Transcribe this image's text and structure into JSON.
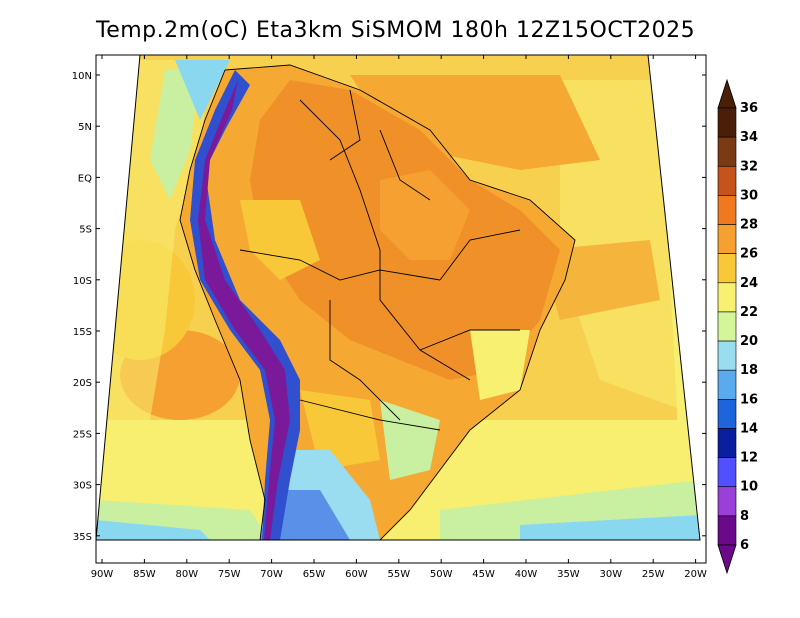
{
  "title": "Temp.2m(oC) Eta3km SiSMOM 180h 12Z15OCT2025",
  "map": {
    "lat_labels": [
      "10N",
      "5N",
      "EQ",
      "5S",
      "10S",
      "15S",
      "20S",
      "25S",
      "30S",
      "35S"
    ],
    "lon_labels": [
      "90W",
      "85W",
      "80W",
      "75W",
      "70W",
      "65W",
      "60W",
      "55W",
      "50W",
      "45W",
      "40W",
      "35W",
      "30W",
      "25W",
      "20W"
    ]
  },
  "colorbar": {
    "labels": [
      "36",
      "34",
      "32",
      "30",
      "28",
      "26",
      "24",
      "22",
      "20",
      "18",
      "16",
      "14",
      "12",
      "10",
      "8",
      "6"
    ],
    "colors": [
      "#4a1e08",
      "#7a3a14",
      "#c4541c",
      "#f0781e",
      "#f5a030",
      "#f8c838",
      "#f8f070",
      "#d4f59a",
      "#9adcf0",
      "#5aaaf0",
      "#1e64dc",
      "#0a1ea0",
      "#5050ff",
      "#9a40d8",
      "#6a0a8a"
    ],
    "top_color": "#4a1e08",
    "bottom_color": "#6a0a8a"
  },
  "colors": {
    "ocean_warm": "#f5b43c",
    "ocean_mid": "#f8d050",
    "ocean_cool": "#f8ee70",
    "coast_green": "#c8f0a0",
    "coast_blue": "#8ad8f0",
    "land_hot": "#f09028",
    "land_warm": "#f5a832",
    "andes_purple": "#7a1a9a",
    "andes_blue": "#3050d0",
    "south_blue": "#5a90e8"
  }
}
